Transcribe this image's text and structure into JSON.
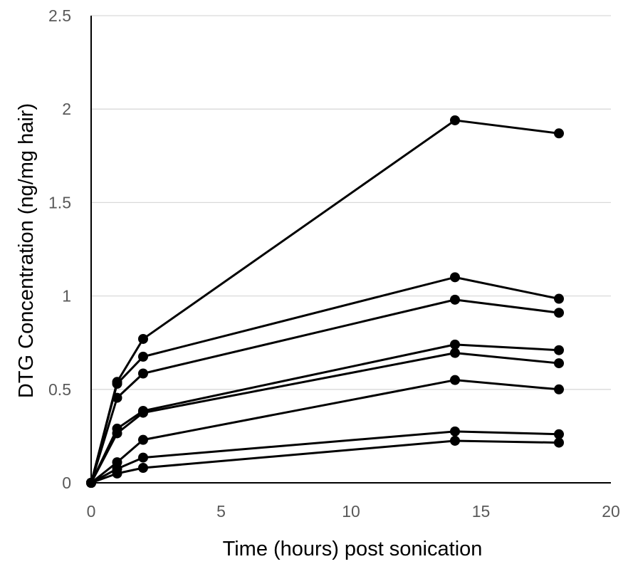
{
  "chart_data": {
    "type": "line",
    "title": "",
    "xlabel": "Time (hours) post sonication",
    "ylabel": "DTG Concentration (ng/mg hair)",
    "xlim": [
      0,
      20
    ],
    "ylim": [
      0,
      2.5
    ],
    "x_ticks": [
      "0",
      "5",
      "10",
      "15",
      "20"
    ],
    "y_ticks": [
      "0",
      "0.5",
      "1",
      "1.5",
      "2",
      "2.5"
    ],
    "grid": "horizontal",
    "legend": "none",
    "colors": {
      "line": "#000000",
      "marker": "#000000",
      "grid": "#d9d9d9",
      "tick_text": "#595959"
    },
    "x": [
      0,
      1,
      2,
      14,
      18
    ],
    "series": [
      {
        "values": [
          0,
          0.54,
          0.77,
          1.94,
          1.87
        ]
      },
      {
        "values": [
          0,
          0.53,
          0.675,
          1.1,
          0.985
        ]
      },
      {
        "values": [
          0,
          0.455,
          0.585,
          0.98,
          0.91
        ]
      },
      {
        "values": [
          0,
          0.29,
          0.385,
          0.74,
          0.71
        ]
      },
      {
        "values": [
          0,
          0.265,
          0.375,
          0.695,
          0.64
        ]
      },
      {
        "values": [
          0,
          0.11,
          0.23,
          0.55,
          0.5
        ]
      },
      {
        "values": [
          0,
          0.075,
          0.135,
          0.275,
          0.26
        ]
      },
      {
        "values": [
          0,
          0.05,
          0.08,
          0.225,
          0.215
        ]
      }
    ]
  }
}
